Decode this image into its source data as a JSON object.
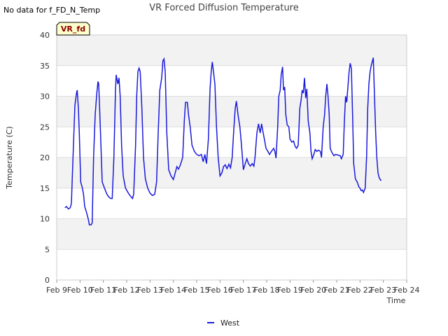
{
  "no_data_note": "No data for f_FD_N_Temp",
  "chart_data": {
    "type": "line",
    "title": "VR Forced Diffusion Temperature",
    "xlabel": "Time",
    "ylabel": "Temperature (C)",
    "ylim": [
      0,
      40
    ],
    "yticks": [
      0,
      5,
      10,
      15,
      20,
      25,
      30,
      35,
      40
    ],
    "xlim": [
      9,
      24
    ],
    "xticks": [
      {
        "v": 9,
        "label": "Feb 9"
      },
      {
        "v": 10,
        "label": "Feb 10"
      },
      {
        "v": 11,
        "label": "Feb 11"
      },
      {
        "v": 12,
        "label": "Feb 12"
      },
      {
        "v": 13,
        "label": "Feb 13"
      },
      {
        "v": 14,
        "label": "Feb 14"
      },
      {
        "v": 15,
        "label": "Feb 15"
      },
      {
        "v": 16,
        "label": "Feb 16"
      },
      {
        "v": 17,
        "label": "Feb 17"
      },
      {
        "v": 18,
        "label": "Feb 18"
      },
      {
        "v": 19,
        "label": "Feb 19"
      },
      {
        "v": 20,
        "label": "Feb 20"
      },
      {
        "v": 21,
        "label": "Feb 21"
      },
      {
        "v": 22,
        "label": "Feb 22"
      },
      {
        "v": 23,
        "label": "Feb 23"
      },
      {
        "v": 24,
        "label": "Feb 24"
      }
    ],
    "badge": "VR_fd",
    "legend_position": "bottom-center",
    "colors": {
      "series": "#1a1adb",
      "band": "#f2f2f2",
      "badge_bg": "#ffffcc",
      "badge_text": "#8b0000"
    },
    "series": [
      {
        "name": "West",
        "points": [
          [
            9.35,
            11.8
          ],
          [
            9.42,
            12.0
          ],
          [
            9.5,
            11.6
          ],
          [
            9.58,
            11.8
          ],
          [
            9.63,
            12.5
          ],
          [
            9.7,
            20
          ],
          [
            9.78,
            28.5
          ],
          [
            9.85,
            30.5
          ],
          [
            9.88,
            31
          ],
          [
            9.93,
            28
          ],
          [
            9.97,
            24
          ],
          [
            10.03,
            16
          ],
          [
            10.1,
            15
          ],
          [
            10.15,
            14
          ],
          [
            10.2,
            12
          ],
          [
            10.28,
            11
          ],
          [
            10.35,
            10
          ],
          [
            10.4,
            9
          ],
          [
            10.47,
            9
          ],
          [
            10.52,
            9.3
          ],
          [
            10.58,
            20
          ],
          [
            10.65,
            27
          ],
          [
            10.72,
            30.5
          ],
          [
            10.77,
            32.4
          ],
          [
            10.8,
            32
          ],
          [
            10.87,
            25
          ],
          [
            10.95,
            16
          ],
          [
            11.05,
            15
          ],
          [
            11.15,
            14
          ],
          [
            11.25,
            13.5
          ],
          [
            11.32,
            13.3
          ],
          [
            11.38,
            13.3
          ],
          [
            11.45,
            20
          ],
          [
            11.52,
            31
          ],
          [
            11.55,
            33.5
          ],
          [
            11.62,
            32
          ],
          [
            11.67,
            33
          ],
          [
            11.72,
            30
          ],
          [
            11.78,
            22
          ],
          [
            11.85,
            17
          ],
          [
            11.95,
            15
          ],
          [
            12.1,
            14
          ],
          [
            12.25,
            13.3
          ],
          [
            12.3,
            14
          ],
          [
            12.38,
            22
          ],
          [
            12.43,
            30
          ],
          [
            12.48,
            34
          ],
          [
            12.53,
            34.6
          ],
          [
            12.58,
            34
          ],
          [
            12.65,
            28
          ],
          [
            12.72,
            20
          ],
          [
            12.8,
            16.5
          ],
          [
            12.9,
            15
          ],
          [
            13.0,
            14.2
          ],
          [
            13.1,
            13.8
          ],
          [
            13.2,
            14
          ],
          [
            13.28,
            16
          ],
          [
            13.35,
            24
          ],
          [
            13.42,
            31
          ],
          [
            13.5,
            33
          ],
          [
            13.55,
            35.8
          ],
          [
            13.6,
            36.1
          ],
          [
            13.65,
            34
          ],
          [
            13.72,
            24
          ],
          [
            13.8,
            18
          ],
          [
            13.9,
            17
          ],
          [
            14.0,
            16.4
          ],
          [
            14.08,
            17.5
          ],
          [
            14.15,
            18.5
          ],
          [
            14.22,
            18.1
          ],
          [
            14.3,
            18.8
          ],
          [
            14.4,
            20
          ],
          [
            14.47,
            26
          ],
          [
            14.52,
            29
          ],
          [
            14.6,
            29
          ],
          [
            14.65,
            27
          ],
          [
            14.72,
            25
          ],
          [
            14.8,
            22
          ],
          [
            14.9,
            21
          ],
          [
            15.0,
            20.5
          ],
          [
            15.1,
            20.3
          ],
          [
            15.2,
            20.5
          ],
          [
            15.28,
            19.3
          ],
          [
            15.35,
            20.5
          ],
          [
            15.42,
            19
          ],
          [
            15.5,
            23
          ],
          [
            15.57,
            31
          ],
          [
            15.62,
            34
          ],
          [
            15.67,
            35.6
          ],
          [
            15.72,
            34
          ],
          [
            15.78,
            32
          ],
          [
            15.85,
            25
          ],
          [
            15.92,
            20
          ],
          [
            16.0,
            17
          ],
          [
            16.08,
            17.5
          ],
          [
            16.15,
            18.5
          ],
          [
            16.22,
            18.8
          ],
          [
            16.3,
            18.2
          ],
          [
            16.38,
            18.9
          ],
          [
            16.45,
            18.3
          ],
          [
            16.52,
            20
          ],
          [
            16.58,
            24
          ],
          [
            16.65,
            28
          ],
          [
            16.7,
            29.2
          ],
          [
            16.77,
            27
          ],
          [
            16.85,
            25
          ],
          [
            16.92,
            22
          ],
          [
            17.0,
            18
          ],
          [
            17.08,
            19
          ],
          [
            17.15,
            19.8
          ],
          [
            17.22,
            19
          ],
          [
            17.3,
            18.6
          ],
          [
            17.38,
            19
          ],
          [
            17.45,
            18.6
          ],
          [
            17.5,
            20
          ],
          [
            17.58,
            24
          ],
          [
            17.65,
            25.5
          ],
          [
            17.72,
            24
          ],
          [
            17.78,
            25.5
          ],
          [
            17.85,
            24
          ],
          [
            17.9,
            23
          ],
          [
            17.97,
            21.5
          ],
          [
            18.05,
            21
          ],
          [
            18.12,
            20.5
          ],
          [
            18.2,
            21
          ],
          [
            18.3,
            21.5
          ],
          [
            18.35,
            21
          ],
          [
            18.4,
            19.9
          ],
          [
            18.47,
            25
          ],
          [
            18.52,
            30
          ],
          [
            18.58,
            31
          ],
          [
            18.62,
            33.5
          ],
          [
            18.68,
            34.8
          ],
          [
            18.72,
            31
          ],
          [
            18.77,
            31.5
          ],
          [
            18.82,
            27
          ],
          [
            18.88,
            25.3
          ],
          [
            18.95,
            25
          ],
          [
            19.0,
            23
          ],
          [
            19.08,
            22.5
          ],
          [
            19.15,
            22.7
          ],
          [
            19.22,
            21.8
          ],
          [
            19.28,
            21.5
          ],
          [
            19.35,
            22
          ],
          [
            19.42,
            28
          ],
          [
            19.48,
            29.5
          ],
          [
            19.52,
            31
          ],
          [
            19.57,
            30.5
          ],
          [
            19.62,
            33
          ],
          [
            19.67,
            29.7
          ],
          [
            19.72,
            31.2
          ],
          [
            19.78,
            26
          ],
          [
            19.85,
            24
          ],
          [
            19.9,
            21
          ],
          [
            19.95,
            19.8
          ],
          [
            20.02,
            20.5
          ],
          [
            20.08,
            21.3
          ],
          [
            20.15,
            21
          ],
          [
            20.22,
            21.2
          ],
          [
            20.3,
            21
          ],
          [
            20.35,
            20
          ],
          [
            20.42,
            25
          ],
          [
            20.48,
            27
          ],
          [
            20.53,
            30
          ],
          [
            20.58,
            32
          ],
          [
            20.62,
            30.5
          ],
          [
            20.68,
            27
          ],
          [
            20.72,
            21.5
          ],
          [
            20.8,
            20.8
          ],
          [
            20.88,
            20.3
          ],
          [
            20.95,
            20.5
          ],
          [
            21.05,
            20.4
          ],
          [
            21.15,
            20.3
          ],
          [
            21.2,
            19.8
          ],
          [
            21.28,
            20.5
          ],
          [
            21.33,
            26
          ],
          [
            21.38,
            30
          ],
          [
            21.43,
            29
          ],
          [
            21.48,
            31.5
          ],
          [
            21.53,
            34
          ],
          [
            21.58,
            35.4
          ],
          [
            21.63,
            34.5
          ],
          [
            21.68,
            27
          ],
          [
            21.73,
            19
          ],
          [
            21.8,
            16.5
          ],
          [
            21.88,
            16
          ],
          [
            21.95,
            15.2
          ],
          [
            22.0,
            15
          ],
          [
            22.05,
            14.6
          ],
          [
            22.1,
            14.7
          ],
          [
            22.15,
            14.3
          ],
          [
            22.22,
            15
          ],
          [
            22.28,
            20
          ],
          [
            22.33,
            28
          ],
          [
            22.38,
            32
          ],
          [
            22.43,
            34
          ],
          [
            22.48,
            35
          ],
          [
            22.52,
            35.6
          ],
          [
            22.57,
            36.3
          ],
          [
            22.62,
            30
          ],
          [
            22.67,
            24
          ],
          [
            22.72,
            20
          ],
          [
            22.77,
            17.5
          ],
          [
            22.82,
            16.7
          ],
          [
            22.88,
            16.3
          ],
          [
            22.92,
            16.3
          ]
        ]
      }
    ]
  }
}
